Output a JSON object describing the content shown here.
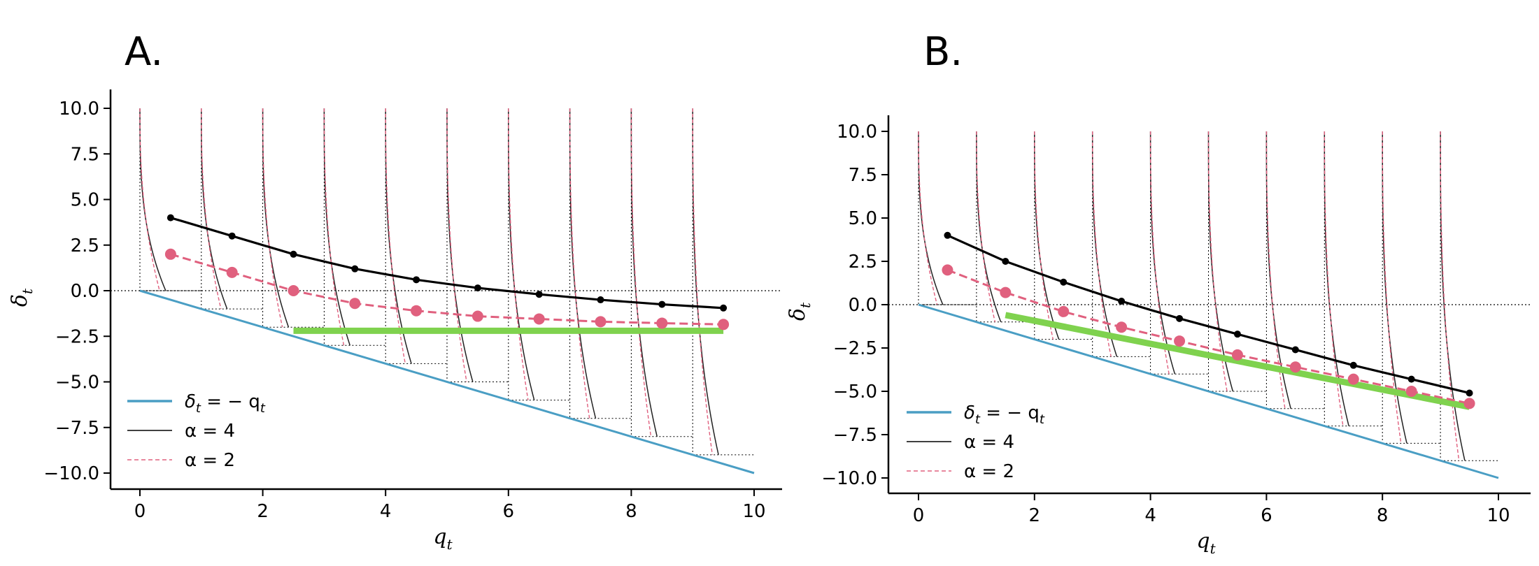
{
  "chart_data": [
    {
      "type": "line",
      "panel_label": "A.",
      "xlabel": "q",
      "xlabel_sub": "t",
      "ylabel": "δ",
      "ylabel_sub": "t",
      "xlim": [
        -0.5,
        10.4
      ],
      "ylim": [
        -10.9,
        11.0
      ],
      "xticks": [
        0,
        2,
        4,
        6,
        8,
        10
      ],
      "xtick_labels": [
        "0",
        "2",
        "4",
        "6",
        "8",
        "10"
      ],
      "yticks": [
        10,
        7.5,
        5,
        2.5,
        0,
        -2.5,
        -5,
        -7.5,
        -10
      ],
      "ytick_labels": [
        "10.0",
        "7.5",
        "5.0",
        "2.5",
        "0.0",
        "−2.5",
        "−5.0",
        "−7.5",
        "−10.0"
      ],
      "legend": {
        "placement": "lower-left",
        "entries": [
          {
            "label": "δ_t = −q_t",
            "text": "δ",
            "sub": "t",
            "rest": " = − q",
            "sub2": "t"
          },
          {
            "label": "α = 4",
            "text": "α = 4"
          },
          {
            "label": "α = 2",
            "text": "α = 2"
          }
        ]
      },
      "boundary_line": {
        "name": "δ_t = −q_t",
        "x": [
          0,
          10
        ],
        "y": [
          0,
          -10
        ],
        "color": "#4a9ec4"
      },
      "hline_zero": {
        "y": 0
      },
      "series": [
        {
          "name": "α = 4",
          "color": "#000000",
          "x": [
            0.5,
            1.5,
            2.5,
            3.5,
            4.5,
            5.5,
            6.5,
            7.5,
            8.5,
            9.5
          ],
          "y": [
            4.0,
            3.0,
            2.0,
            1.2,
            0.6,
            0.15,
            -0.2,
            -0.5,
            -0.75,
            -0.95
          ]
        },
        {
          "name": "α = 2",
          "color": "#e0607e",
          "x": [
            0.5,
            1.5,
            2.5,
            3.5,
            4.5,
            5.5,
            6.5,
            7.5,
            8.5,
            9.5
          ],
          "y": [
            2.0,
            1.0,
            0.0,
            -0.7,
            -1.1,
            -1.4,
            -1.55,
            -1.7,
            -1.78,
            -1.85
          ]
        }
      ],
      "green_line": {
        "x": [
          2.5,
          9.5
        ],
        "y": [
          -2.2,
          -2.2
        ],
        "color": "#7fd24e"
      },
      "curve_bases": [
        0,
        1,
        2,
        3,
        4,
        5,
        6,
        7,
        8,
        9
      ],
      "curve_floor": "baseline"
    },
    {
      "type": "line",
      "panel_label": "B.",
      "xlabel": "q",
      "xlabel_sub": "t",
      "ylabel": "δ",
      "ylabel_sub": "t",
      "xlim": [
        -0.5,
        10.4
      ],
      "ylim": [
        -10.9,
        11.0
      ],
      "xticks": [
        0,
        2,
        4,
        6,
        8,
        10
      ],
      "xtick_labels": [
        "0",
        "2",
        "4",
        "6",
        "8",
        "10"
      ],
      "yticks": [
        10,
        7.5,
        5,
        2.5,
        0,
        -2.5,
        -5,
        -7.5,
        -10
      ],
      "ytick_labels": [
        "10.0",
        "7.5",
        "5.0",
        "2.5",
        "0.0",
        "−2.5",
        "−5.0",
        "−7.5",
        "−10.0"
      ],
      "legend": {
        "placement": "lower-left",
        "entries": [
          {
            "label": "δ_t = −q_t",
            "text": "δ",
            "sub": "t",
            "rest": " = − q",
            "sub2": "t"
          },
          {
            "label": "α = 4",
            "text": "α = 4"
          },
          {
            "label": "α = 2",
            "text": "α = 2"
          }
        ]
      },
      "boundary_line": {
        "name": "δ_t = −q_t",
        "x": [
          0,
          10
        ],
        "y": [
          0,
          -10
        ],
        "color": "#4a9ec4"
      },
      "hline_zero": {
        "y": 0
      },
      "series": [
        {
          "name": "α = 4",
          "color": "#000000",
          "x": [
            0.5,
            1.5,
            2.5,
            3.5,
            4.5,
            5.5,
            6.5,
            7.5,
            8.5,
            9.5
          ],
          "y": [
            4.0,
            2.5,
            1.3,
            0.2,
            -0.8,
            -1.7,
            -2.6,
            -3.5,
            -4.3,
            -5.1
          ]
        },
        {
          "name": "α = 2",
          "color": "#e0607e",
          "x": [
            0.5,
            1.5,
            2.5,
            3.5,
            4.5,
            5.5,
            6.5,
            7.5,
            8.5,
            9.5
          ],
          "y": [
            2.0,
            0.7,
            -0.4,
            -1.3,
            -2.1,
            -2.9,
            -3.6,
            -4.3,
            -5.0,
            -5.7
          ]
        }
      ],
      "green_line": {
        "x": [
          1.5,
          9.5
        ],
        "y": [
          -0.6,
          -5.9
        ],
        "color": "#7fd24e"
      },
      "curve_bases": [
        0,
        1,
        2,
        3,
        4,
        5,
        6,
        7,
        8,
        9
      ],
      "curve_floor": "baseline"
    }
  ]
}
